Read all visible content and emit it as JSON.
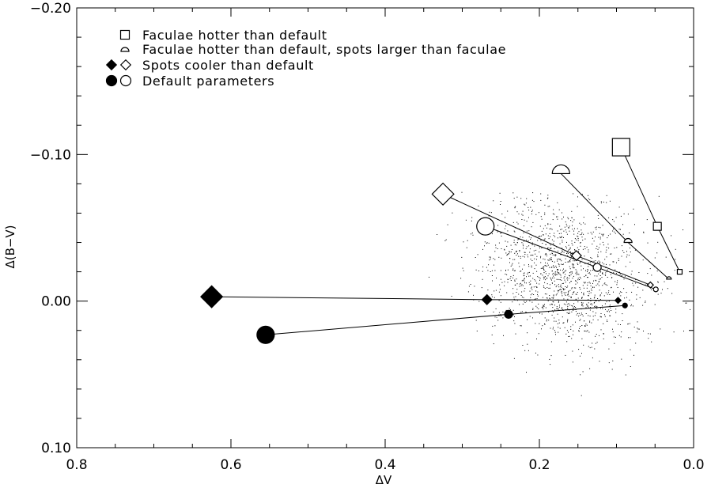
{
  "chart_data": {
    "type": "scatter",
    "xlabel": "ΔV",
    "ylabel": "Δ(B−V)",
    "xlim": [
      0.8,
      0.0
    ],
    "ylim": [
      0.1,
      -0.2
    ],
    "x_ticks": [
      {
        "value": 0.8,
        "label": "0.8"
      },
      {
        "value": 0.6,
        "label": "0.6"
      },
      {
        "value": 0.4,
        "label": "0.4"
      },
      {
        "value": 0.2,
        "label": "0.2"
      },
      {
        "value": 0.0,
        "label": "0.0"
      }
    ],
    "y_ticks": [
      {
        "value": -0.2,
        "label": "−0.20"
      },
      {
        "value": -0.1,
        "label": "−0.10"
      },
      {
        "value": 0.0,
        "label": "0.00"
      },
      {
        "value": 0.1,
        "label": "0.10"
      }
    ],
    "legend_placement": "top-left",
    "legend": [
      {
        "label": "Faculae hotter than default",
        "symbols": [
          "square"
        ]
      },
      {
        "label": "Faculae hotter than default, spots larger than faculae",
        "symbols": [
          "half-circle"
        ]
      },
      {
        "label": "Spots cooler than default",
        "symbols": [
          "diamond-filled",
          "diamond-open"
        ]
      },
      {
        "label": "Default parameters",
        "symbols": [
          "circle-filled",
          "circle-open"
        ]
      }
    ],
    "series": [
      {
        "symbol": "square",
        "filled": false,
        "points": [
          [
            0.094,
            -0.105
          ],
          [
            0.047,
            -0.051
          ],
          [
            0.018,
            -0.02
          ]
        ]
      },
      {
        "symbol": "half-circle",
        "filled": false,
        "points": [
          [
            0.172,
            -0.087
          ],
          [
            0.085,
            -0.04
          ],
          [
            0.032,
            -0.015
          ]
        ]
      },
      {
        "symbol": "diamond",
        "filled": false,
        "points": [
          [
            0.325,
            -0.073
          ],
          [
            0.152,
            -0.031
          ],
          [
            0.056,
            -0.011
          ]
        ]
      },
      {
        "symbol": "circle",
        "filled": false,
        "points": [
          [
            0.27,
            -0.051
          ],
          [
            0.125,
            -0.023
          ],
          [
            0.049,
            -0.008
          ]
        ]
      },
      {
        "symbol": "diamond",
        "filled": true,
        "points": [
          [
            0.625,
            -0.003
          ],
          [
            0.268,
            -0.001
          ],
          [
            0.098,
            -0.0005
          ]
        ]
      },
      {
        "symbol": "circle",
        "filled": true,
        "points": [
          [
            0.555,
            0.023
          ],
          [
            0.24,
            0.009
          ],
          [
            0.089,
            0.003
          ]
        ]
      }
    ],
    "background_cloud": {
      "color": "#000000",
      "n_points": 1500,
      "x_center": 0.17,
      "y_center": -0.02
    }
  }
}
